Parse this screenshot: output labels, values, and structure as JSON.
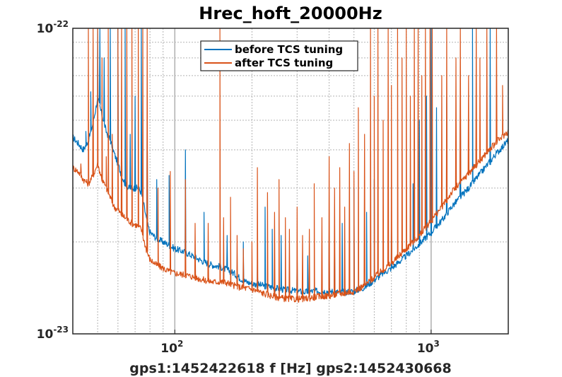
{
  "chart_data": {
    "type": "line",
    "title": "Hrec_hoft_20000Hz",
    "xlabel": "gps1:1452422618  f [Hz]  gps2:1452430668",
    "ylabel": "",
    "xscale": "log",
    "yscale": "log",
    "xlim": [
      40,
      2000
    ],
    "ylim": [
      1e-23,
      1e-22
    ],
    "grid": true,
    "legend_position": "top-center",
    "x_ticks": [
      {
        "value": 100,
        "base": "10",
        "exp": "2"
      },
      {
        "value": 1000,
        "base": "10",
        "exp": "3"
      }
    ],
    "y_ticks": [
      {
        "value": 1e-23,
        "base": "10",
        "exp": "-23"
      },
      {
        "value": 1e-22,
        "base": "10",
        "exp": "-22"
      }
    ],
    "colors": {
      "axis": "#262626",
      "grid": "#b3b3b3",
      "before": "#0072bd",
      "after": "#d95319"
    },
    "series": [
      {
        "name": "before TCS tuning",
        "color": "#0072bd",
        "x": [
          40,
          42,
          44,
          46,
          48,
          50,
          52,
          54,
          56,
          58,
          60,
          62,
          64,
          66,
          68,
          70,
          72,
          74,
          76,
          78,
          80,
          85,
          90,
          95,
          100,
          110,
          120,
          130,
          140,
          150,
          160,
          170,
          180,
          190,
          200,
          210,
          220,
          240,
          260,
          280,
          300,
          320,
          350,
          380,
          400,
          430,
          460,
          500,
          550,
          600,
          650,
          700,
          800,
          900,
          1000,
          1100,
          1200,
          1400,
          1600,
          1800,
          2000
        ],
        "y": [
          4.4e-23,
          4.2e-23,
          4e-23,
          4.3e-23,
          4.9e-23,
          5.9e-23,
          5.2e-23,
          4.6e-23,
          4.3e-23,
          3.9e-23,
          3.6e-23,
          3.3e-23,
          3.1e-23,
          3e-23,
          3e-23,
          3e-23,
          3e-23,
          2.9e-23,
          2.6e-23,
          2.3e-23,
          2.15e-23,
          2.05e-23,
          2e-23,
          1.95e-23,
          1.9e-23,
          1.85e-23,
          1.78e-23,
          1.72e-23,
          1.68e-23,
          1.66e-23,
          1.62e-23,
          1.58e-23,
          1.52e-23,
          1.48e-23,
          1.46e-23,
          1.45e-23,
          1.44e-23,
          1.42e-23,
          1.4e-23,
          1.39e-23,
          1.38e-23,
          1.37e-23,
          1.38e-23,
          1.38e-23,
          1.38e-23,
          1.37e-23,
          1.37e-23,
          1.38e-23,
          1.42e-23,
          1.5e-23,
          1.58e-23,
          1.64e-23,
          1.8e-23,
          1.97e-23,
          2.15e-23,
          2.35e-23,
          2.6e-23,
          3e-23,
          3.45e-23,
          3.9e-23,
          4.3e-23
        ],
        "peaks": [
          {
            "f": 45,
            "y": 4.6e-23
          },
          {
            "f": 47,
            "y": 6.2e-23
          },
          {
            "f": 50,
            "y": 1e-22
          },
          {
            "f": 51,
            "y": 1e-22
          },
          {
            "f": 53,
            "y": 8e-23
          },
          {
            "f": 56,
            "y": 1e-22
          },
          {
            "f": 60,
            "y": 1e-22
          },
          {
            "f": 62,
            "y": 4.8e-23
          },
          {
            "f": 64,
            "y": 1e-22
          },
          {
            "f": 67,
            "y": 4.5e-23
          },
          {
            "f": 70,
            "y": 6e-23
          },
          {
            "f": 74,
            "y": 1e-22
          },
          {
            "f": 78,
            "y": 5.5e-23
          },
          {
            "f": 85,
            "y": 3.2e-23
          },
          {
            "f": 95,
            "y": 3.3e-23
          },
          {
            "f": 110,
            "y": 4e-23
          },
          {
            "f": 130,
            "y": 2.5e-23
          },
          {
            "f": 150,
            "y": 2.6e-23
          },
          {
            "f": 160,
            "y": 2.1e-23
          },
          {
            "f": 185,
            "y": 2e-23
          },
          {
            "f": 210,
            "y": 1.7e-23
          },
          {
            "f": 225,
            "y": 2.6e-23
          },
          {
            "f": 240,
            "y": 2.2e-23
          },
          {
            "f": 260,
            "y": 2.1e-23
          },
          {
            "f": 300,
            "y": 1.8e-23
          },
          {
            "f": 330,
            "y": 1.8e-23
          },
          {
            "f": 400,
            "y": 2.2e-23
          },
          {
            "f": 420,
            "y": 2e-23
          },
          {
            "f": 450,
            "y": 2.3e-23
          },
          {
            "f": 500,
            "y": 3e-23
          },
          {
            "f": 560,
            "y": 2.5e-23
          },
          {
            "f": 600,
            "y": 3.2e-23
          },
          {
            "f": 700,
            "y": 2.6e-23
          },
          {
            "f": 850,
            "y": 3.1e-23
          },
          {
            "f": 900,
            "y": 5e-23
          },
          {
            "f": 960,
            "y": 6e-23
          },
          {
            "f": 1000,
            "y": 1e-22
          },
          {
            "f": 1050,
            "y": 5.5e-23
          },
          {
            "f": 1150,
            "y": 6e-23
          },
          {
            "f": 1300,
            "y": 7.2e-23
          },
          {
            "f": 1450,
            "y": 1e-22
          },
          {
            "f": 1700,
            "y": 1e-22
          }
        ]
      },
      {
        "name": "after TCS tuning",
        "color": "#d95319",
        "x": [
          40,
          42,
          44,
          46,
          48,
          50,
          52,
          54,
          56,
          58,
          60,
          62,
          64,
          66,
          68,
          70,
          72,
          74,
          76,
          78,
          80,
          85,
          90,
          95,
          100,
          110,
          120,
          130,
          140,
          150,
          160,
          170,
          180,
          190,
          200,
          210,
          220,
          240,
          260,
          280,
          300,
          320,
          350,
          380,
          400,
          430,
          460,
          500,
          550,
          600,
          650,
          700,
          800,
          900,
          1000,
          1100,
          1200,
          1400,
          1600,
          1800,
          2000
        ],
        "y": [
          3.5e-23,
          3.4e-23,
          3.2e-23,
          3.1e-23,
          3.3e-23,
          3.6e-23,
          3.2e-23,
          3e-23,
          2.8e-23,
          2.6e-23,
          2.55e-23,
          2.45e-23,
          2.4e-23,
          2.35e-23,
          2.3e-23,
          2.28e-23,
          2.25e-23,
          2.2e-23,
          2e-23,
          1.85e-23,
          1.75e-23,
          1.68e-23,
          1.64e-23,
          1.6e-23,
          1.58e-23,
          1.56e-23,
          1.53e-23,
          1.5e-23,
          1.48e-23,
          1.48e-23,
          1.47e-23,
          1.44e-23,
          1.42e-23,
          1.41e-23,
          1.4e-23,
          1.38e-23,
          1.36e-23,
          1.33e-23,
          1.31e-23,
          1.3e-23,
          1.3e-23,
          1.3e-23,
          1.32e-23,
          1.33e-23,
          1.33e-23,
          1.35e-23,
          1.36e-23,
          1.38e-23,
          1.44e-23,
          1.53e-23,
          1.62e-23,
          1.7e-23,
          1.9e-23,
          2.1e-23,
          2.35e-23,
          2.6e-23,
          2.9e-23,
          3.35e-23,
          3.8e-23,
          4.25e-23,
          4.6e-23
        ],
        "peaks": [
          {
            "f": 43,
            "y": 3.6e-23
          },
          {
            "f": 46,
            "y": 1e-22
          },
          {
            "f": 48,
            "y": 1e-22
          },
          {
            "f": 50,
            "y": 1e-22
          },
          {
            "f": 52,
            "y": 8e-23
          },
          {
            "f": 54,
            "y": 3.8e-23
          },
          {
            "f": 55,
            "y": 1e-22
          },
          {
            "f": 57,
            "y": 4.5e-23
          },
          {
            "f": 60,
            "y": 1e-22
          },
          {
            "f": 62,
            "y": 1e-22
          },
          {
            "f": 65,
            "y": 1e-22
          },
          {
            "f": 68,
            "y": 1e-22
          },
          {
            "f": 72,
            "y": 1e-22
          },
          {
            "f": 75,
            "y": 1e-22
          },
          {
            "f": 78,
            "y": 1e-22
          },
          {
            "f": 86,
            "y": 3e-23
          },
          {
            "f": 96,
            "y": 3.4e-23
          },
          {
            "f": 110,
            "y": 3.2e-23
          },
          {
            "f": 120,
            "y": 2.3e-23
          },
          {
            "f": 135,
            "y": 2.3e-23
          },
          {
            "f": 150,
            "y": 1e-22
          },
          {
            "f": 155,
            "y": 2.4e-23
          },
          {
            "f": 165,
            "y": 2.8e-23
          },
          {
            "f": 175,
            "y": 2.1e-23
          },
          {
            "f": 185,
            "y": 1.9e-23
          },
          {
            "f": 200,
            "y": 2e-23
          },
          {
            "f": 210,
            "y": 3.5e-23
          },
          {
            "f": 230,
            "y": 2.9e-23
          },
          {
            "f": 245,
            "y": 2.5e-23
          },
          {
            "f": 255,
            "y": 3.2e-23
          },
          {
            "f": 270,
            "y": 2.4e-23
          },
          {
            "f": 280,
            "y": 2.2e-23
          },
          {
            "f": 300,
            "y": 2.6e-23
          },
          {
            "f": 315,
            "y": 2.1e-23
          },
          {
            "f": 335,
            "y": 2.2e-23
          },
          {
            "f": 350,
            "y": 3.1e-23
          },
          {
            "f": 375,
            "y": 2.4e-23
          },
          {
            "f": 400,
            "y": 3.8e-23
          },
          {
            "f": 420,
            "y": 3e-23
          },
          {
            "f": 440,
            "y": 3.5e-23
          },
          {
            "f": 460,
            "y": 2.6e-23
          },
          {
            "f": 480,
            "y": 4.2e-23
          },
          {
            "f": 500,
            "y": 3.4e-23
          },
          {
            "f": 520,
            "y": 5.5e-23
          },
          {
            "f": 550,
            "y": 4.5e-23
          },
          {
            "f": 580,
            "y": 1e-22
          },
          {
            "f": 600,
            "y": 6e-23
          },
          {
            "f": 620,
            "y": 1e-22
          },
          {
            "f": 650,
            "y": 5e-23
          },
          {
            "f": 680,
            "y": 1e-22
          },
          {
            "f": 700,
            "y": 6.5e-23
          },
          {
            "f": 740,
            "y": 1e-22
          },
          {
            "f": 770,
            "y": 8e-23
          },
          {
            "f": 800,
            "y": 1e-22
          },
          {
            "f": 830,
            "y": 6e-23
          },
          {
            "f": 860,
            "y": 1e-22
          },
          {
            "f": 890,
            "y": 1e-22
          },
          {
            "f": 920,
            "y": 7e-23
          },
          {
            "f": 950,
            "y": 1e-22
          },
          {
            "f": 990,
            "y": 1e-22
          },
          {
            "f": 1010,
            "y": 1e-22
          },
          {
            "f": 1100,
            "y": 7e-23
          },
          {
            "f": 1150,
            "y": 1e-22
          },
          {
            "f": 1250,
            "y": 8e-23
          },
          {
            "f": 1300,
            "y": 1e-22
          },
          {
            "f": 1400,
            "y": 7e-23
          },
          {
            "f": 1500,
            "y": 1e-22
          },
          {
            "f": 1550,
            "y": 8e-23
          },
          {
            "f": 1650,
            "y": 1e-22
          },
          {
            "f": 1800,
            "y": 1e-22
          },
          {
            "f": 1900,
            "y": 6.5e-23
          }
        ]
      }
    ]
  }
}
